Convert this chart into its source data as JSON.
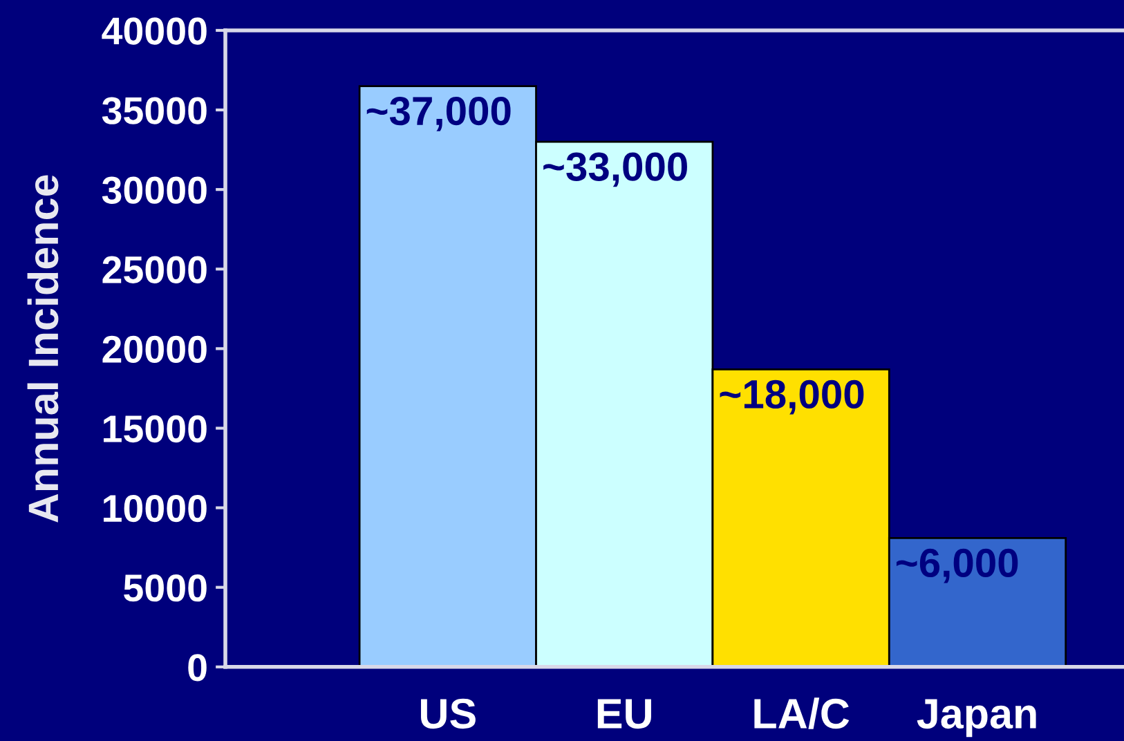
{
  "chart_data": {
    "type": "bar",
    "ylabel": "Annual Incidence",
    "categories": [
      "US",
      "EU",
      "LA/C",
      "Japan"
    ],
    "values": [
      36500,
      33000,
      18700,
      8100
    ],
    "colors": [
      "#99ccff",
      "#ccffff",
      "#ffe000",
      "#3366cc"
    ],
    "annotations": [
      {
        "text": "~37,000",
        "x": "US",
        "y": 36500
      },
      {
        "text": "~33,000",
        "x": "EU",
        "y": 33000
      },
      {
        "text": "~18,000",
        "x": "LA/C",
        "y": 18700
      },
      {
        "text": "~6,000",
        "x": "Japan",
        "y": 8100
      }
    ],
    "ylim": [
      0,
      40000
    ],
    "yticks": [
      0,
      5000,
      10000,
      15000,
      20000,
      25000,
      30000,
      35000,
      40000
    ]
  }
}
